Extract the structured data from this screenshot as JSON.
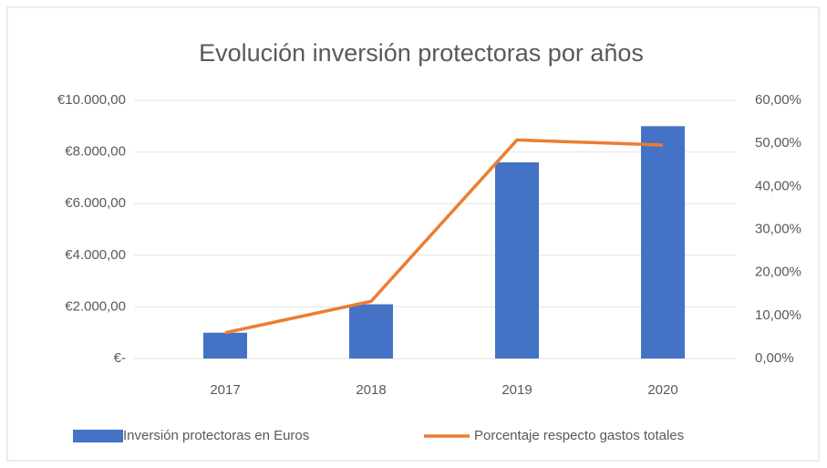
{
  "chart_data": {
    "type": "bar_line",
    "title": "Evolución inversión protectoras por años",
    "categories": [
      "2017",
      "2018",
      "2019",
      "2020"
    ],
    "series": [
      {
        "name": "Inversión protectoras en Euros",
        "color": "#4472c4",
        "type": "bar",
        "values": [
          1000,
          2100,
          7600,
          9000
        ]
      },
      {
        "name": "Porcentaje respecto gastos totales",
        "color": "#ed7d31",
        "type": "line",
        "axis": "y2",
        "values": [
          6,
          13.3,
          50.8,
          49.6
        ]
      }
    ],
    "ylim": [
      0,
      10000
    ],
    "yticks": [
      {
        "value": 0,
        "label": "€-"
      },
      {
        "value": 2000,
        "label": "€2.000,00"
      },
      {
        "value": 4000,
        "label": "€4.000,00"
      },
      {
        "value": 6000,
        "label": "€6.000,00"
      },
      {
        "value": 8000,
        "label": "€8.000,00"
      },
      {
        "value": 10000,
        "label": "€10.000,00"
      }
    ],
    "y2lim": [
      0,
      60
    ],
    "y2ticks": [
      {
        "value": 0,
        "label": "0,00%"
      },
      {
        "value": 10,
        "label": "10,00%"
      },
      {
        "value": 20,
        "label": "20,00%"
      },
      {
        "value": 30,
        "label": "30,00%"
      },
      {
        "value": 40,
        "label": "40,00%"
      },
      {
        "value": 50,
        "label": "50,00%"
      },
      {
        "value": 60,
        "label": "60,00%"
      }
    ],
    "grid": true,
    "legend": "bottom"
  }
}
